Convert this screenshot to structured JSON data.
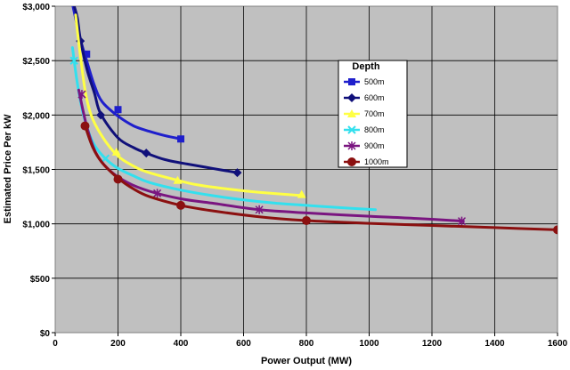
{
  "chart_data": {
    "type": "line",
    "title": "",
    "xlabel": "Power Output (MW)",
    "ylabel": "Estimated Price Per kW",
    "xlim": [
      0,
      1600
    ],
    "ylim": [
      0,
      3000
    ],
    "xticks": [
      0,
      200,
      400,
      600,
      800,
      1000,
      1200,
      1400,
      1600
    ],
    "xtick_labels": [
      "0",
      "200",
      "400",
      "600",
      "800",
      "1000",
      "1200",
      "1400",
      "1600"
    ],
    "yticks": [
      0,
      500,
      1000,
      1500,
      2000,
      2500,
      3000
    ],
    "ytick_labels": [
      "$0",
      "$500",
      "$1,000",
      "$1,500",
      "$2,000",
      "$2,500",
      "$3,000"
    ],
    "grid": true,
    "plot_background": "#c0c0c0",
    "legend": {
      "title": "Depth",
      "position": "center-right"
    },
    "series": [
      {
        "name": "500m",
        "color": "#1f1fcc",
        "marker": "square",
        "curve": [
          [
            50,
            3100
          ],
          [
            60,
            2950
          ],
          [
            80,
            2700
          ],
          [
            100,
            2500
          ],
          [
            125,
            2270
          ],
          [
            150,
            2120
          ],
          [
            200,
            1990
          ],
          [
            250,
            1900
          ],
          [
            300,
            1850
          ],
          [
            350,
            1810
          ],
          [
            400,
            1780
          ]
        ],
        "markers": [
          [
            100,
            2560
          ],
          [
            200,
            2050
          ],
          [
            400,
            1780
          ]
        ]
      },
      {
        "name": "600m",
        "color": "#10107a",
        "marker": "diamond",
        "curve": [
          [
            55,
            3050
          ],
          [
            70,
            2900
          ],
          [
            80,
            2700
          ],
          [
            100,
            2430
          ],
          [
            125,
            2200
          ],
          [
            145,
            2010
          ],
          [
            200,
            1790
          ],
          [
            250,
            1700
          ],
          [
            290,
            1650
          ],
          [
            350,
            1590
          ],
          [
            420,
            1550
          ],
          [
            500,
            1510
          ],
          [
            580,
            1470
          ]
        ],
        "markers": [
          [
            80,
            2680
          ],
          [
            145,
            2000
          ],
          [
            290,
            1650
          ],
          [
            580,
            1470
          ]
        ]
      },
      {
        "name": "700m",
        "color": "#ffff44",
        "marker": "triangle",
        "curve": [
          [
            65,
            2920
          ],
          [
            80,
            2550
          ],
          [
            100,
            2150
          ],
          [
            130,
            1900
          ],
          [
            190,
            1650
          ],
          [
            250,
            1530
          ],
          [
            300,
            1470
          ],
          [
            390,
            1400
          ],
          [
            450,
            1360
          ],
          [
            550,
            1320
          ],
          [
            650,
            1290
          ],
          [
            785,
            1260
          ]
        ],
        "markers": [
          [
            195,
            1660
          ],
          [
            390,
            1400
          ],
          [
            785,
            1270
          ]
        ]
      },
      {
        "name": "800m",
        "color": "#33e0ee",
        "marker": "x",
        "curve": [
          [
            55,
            2620
          ],
          [
            70,
            2300
          ],
          [
            90,
            2000
          ],
          [
            120,
            1750
          ],
          [
            160,
            1600
          ],
          [
            200,
            1510
          ],
          [
            250,
            1440
          ],
          [
            300,
            1380
          ],
          [
            400,
            1310
          ],
          [
            500,
            1260
          ],
          [
            600,
            1220
          ],
          [
            700,
            1190
          ],
          [
            800,
            1170
          ],
          [
            900,
            1150
          ],
          [
            1020,
            1130
          ]
        ],
        "markers": [
          [
            60,
            2500
          ],
          [
            160,
            1600
          ]
        ]
      },
      {
        "name": "900m",
        "color": "#7a1580",
        "marker": "star",
        "curve": [
          [
            75,
            2230
          ],
          [
            100,
            1900
          ],
          [
            130,
            1650
          ],
          [
            170,
            1500
          ],
          [
            230,
            1380
          ],
          [
            300,
            1300
          ],
          [
            400,
            1230
          ],
          [
            500,
            1190
          ],
          [
            650,
            1130
          ],
          [
            800,
            1100
          ],
          [
            1000,
            1070
          ],
          [
            1150,
            1050
          ],
          [
            1300,
            1025
          ]
        ],
        "markers": [
          [
            85,
            2190
          ],
          [
            325,
            1280
          ],
          [
            650,
            1130
          ],
          [
            1295,
            1025
          ]
        ]
      },
      {
        "name": "1000m",
        "color": "#8b1010",
        "marker": "circle",
        "curve": [
          [
            95,
            1900
          ],
          [
            120,
            1700
          ],
          [
            150,
            1560
          ],
          [
            200,
            1420
          ],
          [
            250,
            1320
          ],
          [
            300,
            1250
          ],
          [
            400,
            1170
          ],
          [
            500,
            1120
          ],
          [
            650,
            1065
          ],
          [
            800,
            1030
          ],
          [
            1000,
            1005
          ],
          [
            1200,
            985
          ],
          [
            1400,
            965
          ],
          [
            1600,
            945
          ]
        ],
        "markers": [
          [
            95,
            1900
          ],
          [
            200,
            1410
          ],
          [
            400,
            1170
          ],
          [
            800,
            1030
          ],
          [
            1600,
            945
          ]
        ]
      }
    ]
  }
}
